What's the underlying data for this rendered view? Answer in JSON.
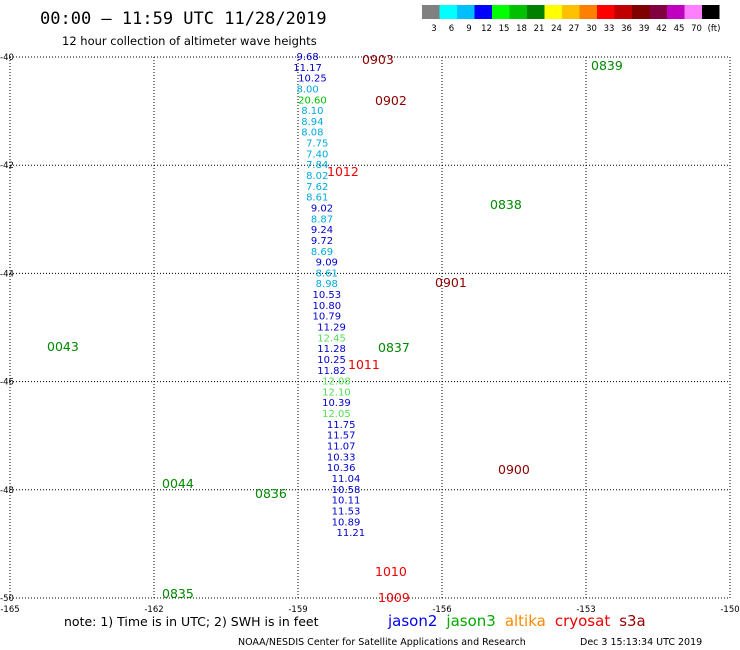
{
  "header": {
    "title": "00:00 – 11:59 UTC 11/28/2019",
    "subtitle": "12 hour collection of altimeter wave heights"
  },
  "color_scale": {
    "colors": [
      "#808080",
      "#00ffff",
      "#00bfff",
      "#0000ff",
      "#00ff00",
      "#00c000",
      "#008000",
      "#ffff00",
      "#ffc000",
      "#ff8000",
      "#ff0000",
      "#c00000",
      "#800000",
      "#800040",
      "#c000c0",
      "#ff80ff",
      "#000000"
    ],
    "labels": [
      "3",
      "6",
      "9",
      "12",
      "15",
      "18",
      "21",
      "24",
      "27",
      "30",
      "33",
      "36",
      "39",
      "42",
      "45",
      "70",
      "(ft)"
    ]
  },
  "footer": {
    "note": "note:  1) Time is in UTC;  2) SWH is in feet",
    "satellites": [
      {
        "name": "jason2",
        "color": "#0000ee"
      },
      {
        "name": "jason3",
        "color": "#00aa00"
      },
      {
        "name": "altika",
        "color": "#ff8800"
      },
      {
        "name": "cryosat",
        "color": "#ee0000"
      },
      {
        "name": "s3a",
        "color": "#990000"
      }
    ],
    "credit": "NOAA/NESDIS Center for Satellite Applications and Research",
    "timestamp": "Dec  3 15:13:34 UTC 2019"
  },
  "chart_data": {
    "type": "scatter",
    "title": "12 hour collection of altimeter wave heights",
    "xlim": [
      -165,
      -150
    ],
    "ylim": [
      -50,
      -40
    ],
    "x_ticks": [
      "-165",
      "-162",
      "-159",
      "-156",
      "-153",
      "-150"
    ],
    "y_ticks": [
      "-40",
      "-42",
      "-44",
      "-46",
      "-48",
      "-50"
    ],
    "grid": true,
    "series": [
      {
        "name": "jason2",
        "points": [
          {
            "x": -158.8,
            "y": -40.0,
            "v": "9.68"
          },
          {
            "x": -158.8,
            "y": -40.2,
            "v": "11.17"
          },
          {
            "x": -158.7,
            "y": -40.4,
            "v": "10.25"
          },
          {
            "x": -158.8,
            "y": -40.6,
            "v": "8.00"
          },
          {
            "x": -158.7,
            "y": -40.8,
            "v": "20.60"
          },
          {
            "x": -158.7,
            "y": -41.0,
            "v": "8.10"
          },
          {
            "x": -158.7,
            "y": -41.2,
            "v": "8.94"
          },
          {
            "x": -158.7,
            "y": -41.4,
            "v": "8.08"
          },
          {
            "x": -158.6,
            "y": -41.6,
            "v": "7.75"
          },
          {
            "x": -158.6,
            "y": -41.8,
            "v": "7.40"
          },
          {
            "x": -158.6,
            "y": -42.0,
            "v": "7.84"
          },
          {
            "x": -158.6,
            "y": -42.2,
            "v": "8.02"
          },
          {
            "x": -158.6,
            "y": -42.4,
            "v": "7.62"
          },
          {
            "x": -158.6,
            "y": -42.6,
            "v": "8.61"
          },
          {
            "x": -158.5,
            "y": -42.8,
            "v": "9.02"
          },
          {
            "x": -158.5,
            "y": -43.0,
            "v": "8.87"
          },
          {
            "x": -158.5,
            "y": -43.2,
            "v": "9.24"
          },
          {
            "x": -158.5,
            "y": -43.4,
            "v": "9.72"
          },
          {
            "x": -158.5,
            "y": -43.6,
            "v": "8.69"
          },
          {
            "x": -158.4,
            "y": -43.8,
            "v": "9.09"
          },
          {
            "x": -158.4,
            "y": -44.0,
            "v": "8.61"
          },
          {
            "x": -158.4,
            "y": -44.2,
            "v": "8.98"
          },
          {
            "x": -158.4,
            "y": -44.4,
            "v": "10.53"
          },
          {
            "x": -158.4,
            "y": -44.6,
            "v": "10.80"
          },
          {
            "x": -158.4,
            "y": -44.8,
            "v": "10.79"
          },
          {
            "x": -158.3,
            "y": -45.0,
            "v": "11.29"
          },
          {
            "x": -158.3,
            "y": -45.2,
            "v": "12.45"
          },
          {
            "x": -158.3,
            "y": -45.4,
            "v": "11.28"
          },
          {
            "x": -158.3,
            "y": -45.6,
            "v": "10.25"
          },
          {
            "x": -158.3,
            "y": -45.8,
            "v": "11.82"
          },
          {
            "x": -158.2,
            "y": -46.0,
            "v": "12.08"
          },
          {
            "x": -158.2,
            "y": -46.2,
            "v": "12.10"
          },
          {
            "x": -158.2,
            "y": -46.4,
            "v": "10.39"
          },
          {
            "x": -158.2,
            "y": -46.6,
            "v": "12.05"
          },
          {
            "x": -158.1,
            "y": -46.8,
            "v": "11.75"
          },
          {
            "x": -158.1,
            "y": -47.0,
            "v": "11.57"
          },
          {
            "x": -158.1,
            "y": -47.2,
            "v": "11.07"
          },
          {
            "x": -158.1,
            "y": -47.4,
            "v": "10.33"
          },
          {
            "x": -158.1,
            "y": -47.6,
            "v": "10.36"
          },
          {
            "x": -158.0,
            "y": -47.8,
            "v": "11.04"
          },
          {
            "x": -158.0,
            "y": -48.0,
            "v": "10.58"
          },
          {
            "x": -158.0,
            "y": -48.2,
            "v": "10.11"
          },
          {
            "x": -158.0,
            "y": -48.4,
            "v": "11.53"
          },
          {
            "x": -158.0,
            "y": -48.6,
            "v": "10.89"
          },
          {
            "x": -157.9,
            "y": -48.8,
            "v": "11.21"
          }
        ]
      }
    ],
    "track_labels": [
      {
        "text": "0903",
        "color": "#8b0000"
      },
      {
        "text": "0902",
        "color": "#8b0000"
      },
      {
        "text": "1012",
        "color": "#ee0000"
      },
      {
        "text": "0839",
        "color": "#008800"
      },
      {
        "text": "0838",
        "color": "#008800"
      },
      {
        "text": "0901",
        "color": "#8b0000"
      },
      {
        "text": "0043",
        "color": "#008800"
      },
      {
        "text": "0837",
        "color": "#008800"
      },
      {
        "text": "1011",
        "color": "#ee0000"
      },
      {
        "text": "0900",
        "color": "#8b0000"
      },
      {
        "text": "0044",
        "color": "#008800"
      },
      {
        "text": "0836",
        "color": "#008800"
      },
      {
        "text": "1010",
        "color": "#ee0000"
      },
      {
        "text": "0835",
        "color": "#008800"
      },
      {
        "text": "1009",
        "color": "#ee0000"
      }
    ]
  }
}
